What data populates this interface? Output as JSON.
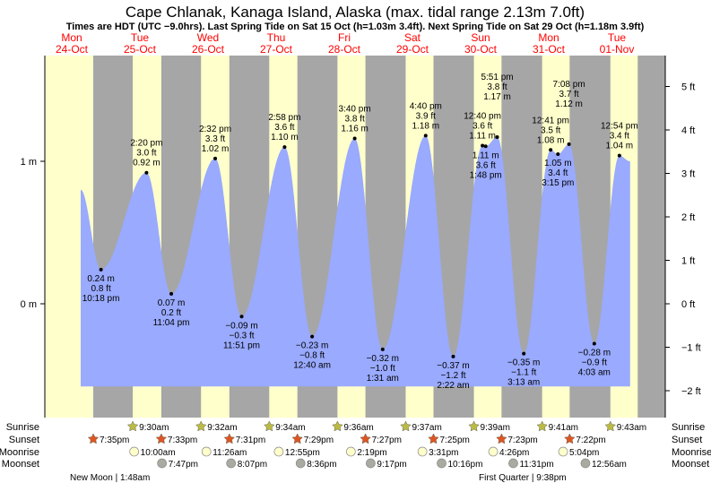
{
  "chart_data": {
    "type": "area",
    "title": "Cape Chlanak, Kanaga Island, Alaska (max. tidal range 2.13m 7.0ft)",
    "subtitle": "Times are HDT (UTC −9.0hrs). Last Spring Tide on Sat 15 Oct (h=1.03m 3.4ft). Next Spring Tide on Sat 29 Oct (h=1.18m 3.9ft)",
    "days": [
      {
        "dow": "Mon",
        "date": "24-Oct"
      },
      {
        "dow": "Tue",
        "date": "25-Oct"
      },
      {
        "dow": "Wed",
        "date": "26-Oct"
      },
      {
        "dow": "Thu",
        "date": "27-Oct"
      },
      {
        "dow": "Fri",
        "date": "28-Oct"
      },
      {
        "dow": "Sat",
        "date": "29-Oct"
      },
      {
        "dow": "Sun",
        "date": "30-Oct"
      },
      {
        "dow": "Mon",
        "date": "31-Oct"
      },
      {
        "dow": "Tue",
        "date": "01-Nov"
      }
    ],
    "y_left_ticks": [
      {
        "value": 1,
        "label": "1 m"
      },
      {
        "value": 0,
        "label": "0 m"
      }
    ],
    "y_right_ticks": [
      {
        "value": 5,
        "label": "5 ft"
      },
      {
        "value": 4,
        "label": "4 ft"
      },
      {
        "value": 3,
        "label": "3 ft"
      },
      {
        "value": 2,
        "label": "2 ft"
      },
      {
        "value": 1,
        "label": "1 ft"
      },
      {
        "value": 0,
        "label": "0 ft"
      },
      {
        "value": -1,
        "label": "−1 ft"
      },
      {
        "value": -2,
        "label": "−2 ft"
      }
    ],
    "ylim_m": [
      -0.58,
      1.78
    ],
    "series_start": {
      "day": 0,
      "time": "3:10 pm",
      "m": 0.8
    },
    "series_end": {
      "day": 8,
      "time": "4:40 pm",
      "m": 1.0
    },
    "extremes": [
      {
        "type": "low",
        "day": 0,
        "time": "10:18 pm",
        "m": "0.24 m",
        "ft": "0.8 ft",
        "value": 0.24
      },
      {
        "type": "high",
        "day": 1,
        "time": "2:20 pm",
        "m": "0.92 m",
        "ft": "3.0 ft",
        "value": 0.92
      },
      {
        "type": "low",
        "day": 1,
        "time": "11:04 pm",
        "m": "0.07 m",
        "ft": "0.2 ft",
        "value": 0.07
      },
      {
        "type": "high",
        "day": 2,
        "time": "2:32 pm",
        "m": "1.02 m",
        "ft": "3.3 ft",
        "value": 1.02
      },
      {
        "type": "low",
        "day": 2,
        "time": "11:51 pm",
        "m": "−0.09 m",
        "ft": "−0.3 ft",
        "value": -0.09
      },
      {
        "type": "high",
        "day": 3,
        "time": "2:58 pm",
        "m": "1.10 m",
        "ft": "3.6 ft",
        "value": 1.1
      },
      {
        "type": "low",
        "day": 4,
        "time": "12:40 am",
        "m": "−0.23 m",
        "ft": "−0.8 ft",
        "value": -0.23
      },
      {
        "type": "high",
        "day": 4,
        "time": "3:40 pm",
        "m": "1.16 m",
        "ft": "3.8 ft",
        "value": 1.16
      },
      {
        "type": "low",
        "day": 5,
        "time": "1:31 am",
        "m": "−0.32 m",
        "ft": "−1.0 ft",
        "value": -0.32
      },
      {
        "type": "high",
        "day": 5,
        "time": "4:40 pm",
        "m": "1.18 m",
        "ft": "3.9 ft",
        "value": 1.18
      },
      {
        "type": "low",
        "day": 6,
        "time": "2:22 am",
        "m": "−0.37 m",
        "ft": "−1.2 ft",
        "value": -0.37
      },
      {
        "type": "high",
        "day": 6,
        "time": "12:40 pm",
        "m": "1.11 m",
        "ft": "3.6 ft",
        "value": 1.11
      },
      {
        "type": "low",
        "day": 6,
        "time": "1:48 pm",
        "m": "1.11 m",
        "ft": "3.6 ft",
        "value": 1.105
      },
      {
        "type": "high",
        "day": 6,
        "time": "5:51 pm",
        "m": "1.17 m",
        "ft": "3.8 ft",
        "value": 1.17
      },
      {
        "type": "low",
        "day": 7,
        "time": "3:13 am",
        "m": "−0.35 m",
        "ft": "−1.1 ft",
        "value": -0.35
      },
      {
        "type": "high",
        "day": 7,
        "time": "12:41 pm",
        "m": "1.08 m",
        "ft": "3.5 ft",
        "value": 1.08
      },
      {
        "type": "low",
        "day": 7,
        "time": "3:15 pm",
        "m": "1.05 m",
        "ft": "3.4 ft",
        "value": 1.05
      },
      {
        "type": "high",
        "day": 7,
        "time": "7:08 pm",
        "m": "1.12 m",
        "ft": "3.7 ft",
        "value": 1.12
      },
      {
        "type": "low",
        "day": 8,
        "time": "4:03 am",
        "m": "−0.28 m",
        "ft": "−0.9 ft",
        "value": -0.28
      },
      {
        "type": "high",
        "day": 8,
        "time": "12:54 pm",
        "m": "1.04 m",
        "ft": "3.4 ft",
        "value": 1.04
      }
    ],
    "row_labels": {
      "sunrise": "Sunrise",
      "sunset": "Sunset",
      "moonrise": "Moonrise",
      "moonset": "Moonset"
    },
    "sunrise": [
      {
        "day": 1,
        "time": "9:30am"
      },
      {
        "day": 2,
        "time": "9:32am"
      },
      {
        "day": 3,
        "time": "9:34am"
      },
      {
        "day": 4,
        "time": "9:36am"
      },
      {
        "day": 5,
        "time": "9:37am"
      },
      {
        "day": 6,
        "time": "9:39am"
      },
      {
        "day": 7,
        "time": "9:41am"
      },
      {
        "day": 8,
        "time": "9:43am"
      }
    ],
    "sunset": [
      {
        "day": 0,
        "time": "7:35pm"
      },
      {
        "day": 1,
        "time": "7:33pm"
      },
      {
        "day": 2,
        "time": "7:31pm"
      },
      {
        "day": 3,
        "time": "7:29pm"
      },
      {
        "day": 4,
        "time": "7:27pm"
      },
      {
        "day": 5,
        "time": "7:25pm"
      },
      {
        "day": 6,
        "time": "7:23pm"
      },
      {
        "day": 7,
        "time": "7:22pm"
      }
    ],
    "moonrise": [
      {
        "day": 1,
        "time": "10:00am"
      },
      {
        "day": 2,
        "time": "11:26am"
      },
      {
        "day": 3,
        "time": "12:55pm"
      },
      {
        "day": 4,
        "time": "2:19pm"
      },
      {
        "day": 5,
        "time": "3:31pm"
      },
      {
        "day": 6,
        "time": "4:26pm"
      },
      {
        "day": 7,
        "time": "5:04pm"
      }
    ],
    "moonset": [
      {
        "day": 1,
        "time": "7:47pm"
      },
      {
        "day": 2,
        "time": "8:07pm"
      },
      {
        "day": 3,
        "time": "8:36pm"
      },
      {
        "day": 4,
        "time": "9:17pm"
      },
      {
        "day": 5,
        "time": "10:16pm"
      },
      {
        "day": 6,
        "time": "11:31pm"
      },
      {
        "day": 8,
        "time": "12:56am"
      }
    ],
    "moon_phases": [
      {
        "day": 1,
        "label": "New Moon | 1:48am"
      },
      {
        "day": 7,
        "label": "First Quarter | 9:38pm"
      }
    ],
    "colors": {
      "day": "#ffffcc",
      "night": "#a6a6a6",
      "water": "#99aaff",
      "day_label": "#ff0000",
      "sunrise": "#bbbb44",
      "sunset": "#dd5522",
      "moonrise": "#ffffcc",
      "moonset": "#aaaaa0"
    }
  }
}
